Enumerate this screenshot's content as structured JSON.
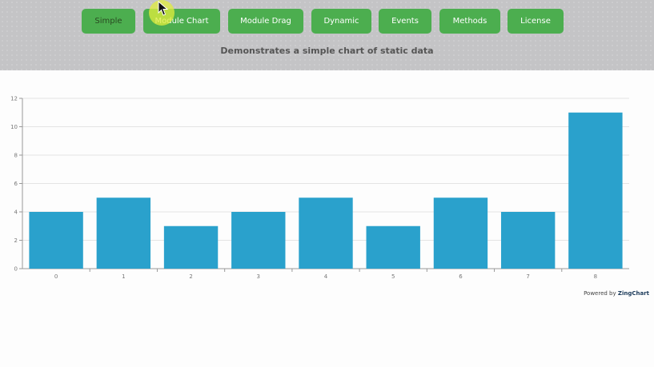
{
  "nav": {
    "buttons": [
      {
        "label": "Simple",
        "active": true
      },
      {
        "label": "Module Chart",
        "active": false
      },
      {
        "label": "Module Drag",
        "active": false
      },
      {
        "label": "Dynamic",
        "active": false
      },
      {
        "label": "Events",
        "active": false
      },
      {
        "label": "Methods",
        "active": false
      },
      {
        "label": "License",
        "active": false
      }
    ],
    "button_color": "#4cae4f"
  },
  "subtitle": "Demonstrates a simple chart of static data",
  "credit": {
    "prefix": "Powered by",
    "brand": "ZingChart"
  },
  "chart_data": {
    "type": "bar",
    "categories": [
      "0",
      "1",
      "2",
      "3",
      "4",
      "5",
      "6",
      "7",
      "8"
    ],
    "values": [
      4,
      5,
      3,
      4,
      5,
      3,
      5,
      4,
      11
    ],
    "ylim": [
      0,
      12
    ],
    "yticks": [
      0,
      2,
      4,
      6,
      8,
      10,
      12
    ],
    "grid": true,
    "bar_color": "#2aa1cc"
  }
}
